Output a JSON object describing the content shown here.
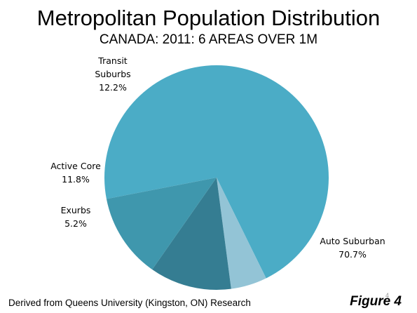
{
  "title": "Metropolitan Population Distribution",
  "subtitle": "CANADA: 2011: 6 AREAS OVER 1M",
  "chart_data": {
    "type": "pie",
    "title": "Metropolitan Population Distribution",
    "subtitle": "CANADA: 2011: 6 AREAS OVER 1M",
    "slices": [
      {
        "label": "Auto Suburban",
        "value": 70.7,
        "value_label": "70.7%",
        "color": "#4bacc6"
      },
      {
        "label": "Exurbs",
        "value": 5.2,
        "value_label": "5.2%",
        "color": "#93c4d6"
      },
      {
        "label": "Active Core",
        "value": 11.8,
        "value_label": "11.8%",
        "color": "#357d92"
      },
      {
        "label": "Transit Suburbs",
        "value": 12.2,
        "value_label": "12.2%",
        "color": "#3f97ad"
      }
    ]
  },
  "footer": {
    "source": "Derived from Queens University (Kingston, ON) Research",
    "figure": "Figure 4",
    "page_number": "4"
  }
}
